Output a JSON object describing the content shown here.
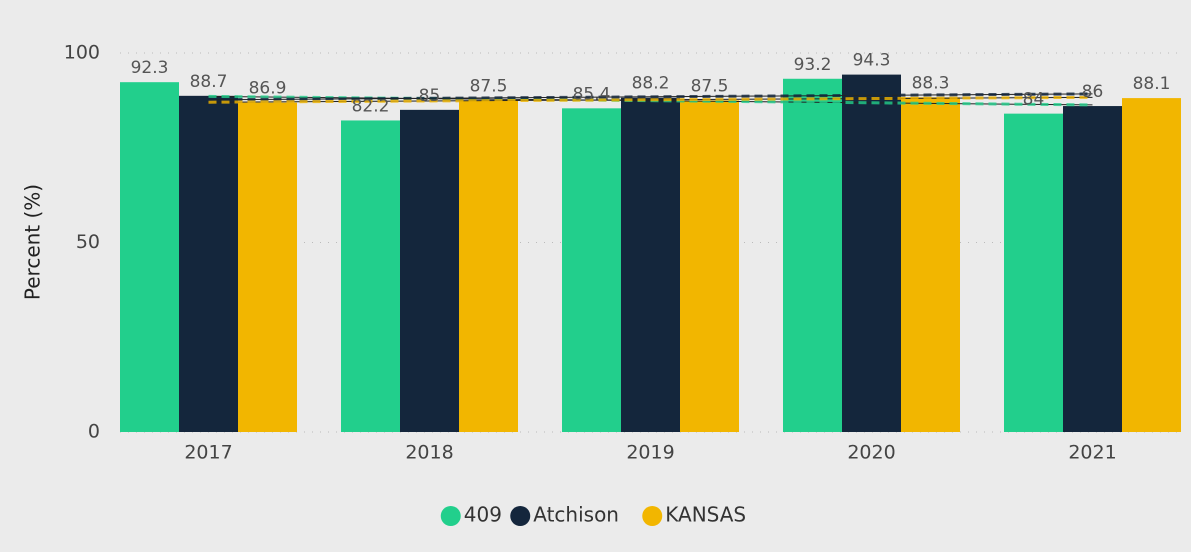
{
  "chart_data": {
    "type": "bar",
    "y_label": "Percent (%)",
    "categories": [
      "2017",
      "2018",
      "2019",
      "2020",
      "2021"
    ],
    "series": [
      {
        "name": "409",
        "color": "#22cf8c",
        "values": [
          92.3,
          82.2,
          85.4,
          93.2,
          84.0
        ]
      },
      {
        "name": "Atchison",
        "color": "#14263c",
        "values": [
          88.7,
          85.0,
          88.2,
          94.3,
          86.0
        ]
      },
      {
        "name": "KANSAS",
        "color": "#f2b600",
        "values": [
          86.9,
          87.5,
          87.5,
          88.3,
          88.1
        ]
      }
    ],
    "ylim": [
      0,
      100
    ],
    "yticks": [
      0,
      50,
      100
    ],
    "grid": true,
    "trendlines": true,
    "legend": "bottom"
  }
}
